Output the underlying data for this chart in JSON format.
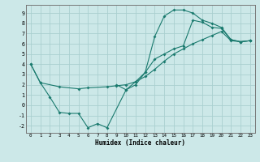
{
  "xlabel": "Humidex (Indice chaleur)",
  "bg_color": "#cce8e8",
  "grid_color": "#aad0d0",
  "line_color": "#1a7a6e",
  "xlim": [
    -0.5,
    23.5
  ],
  "ylim": [
    -2.7,
    9.8
  ],
  "xticks": [
    0,
    1,
    2,
    3,
    4,
    5,
    6,
    7,
    8,
    9,
    10,
    11,
    12,
    13,
    14,
    15,
    16,
    17,
    18,
    19,
    20,
    21,
    22,
    23
  ],
  "yticks": [
    -2,
    -1,
    0,
    1,
    2,
    3,
    4,
    5,
    6,
    7,
    8,
    9
  ],
  "line1_x": [
    0,
    1,
    2,
    3,
    4,
    5,
    6,
    7,
    8,
    10,
    11,
    12,
    13,
    14,
    15,
    16,
    17,
    18,
    19,
    20,
    21,
    22,
    23
  ],
  "line1_y": [
    4.0,
    2.2,
    0.8,
    -0.7,
    -0.8,
    -0.8,
    -2.2,
    -1.8,
    -2.2,
    1.5,
    2.0,
    3.2,
    6.7,
    8.7,
    9.3,
    9.3,
    9.0,
    8.3,
    8.0,
    7.6,
    6.4,
    6.2,
    6.3
  ],
  "line2_x": [
    0,
    1,
    3,
    5,
    6,
    8,
    9,
    10,
    11,
    12,
    13,
    14,
    15,
    16,
    17,
    18,
    19,
    20,
    21,
    22,
    23
  ],
  "line2_y": [
    4.0,
    2.2,
    1.8,
    1.6,
    1.7,
    1.8,
    1.9,
    2.0,
    2.3,
    2.8,
    3.5,
    4.3,
    5.0,
    5.5,
    6.0,
    6.4,
    6.8,
    7.2,
    6.3,
    6.2,
    6.3
  ],
  "line3_x": [
    9,
    10,
    11,
    12,
    13,
    14,
    15,
    16,
    17,
    18,
    19,
    20,
    21,
    22,
    23
  ],
  "line3_y": [
    2.0,
    1.5,
    2.3,
    3.2,
    4.5,
    5.0,
    5.5,
    5.8,
    8.3,
    8.1,
    7.6,
    7.5,
    6.4,
    6.2,
    6.3
  ]
}
